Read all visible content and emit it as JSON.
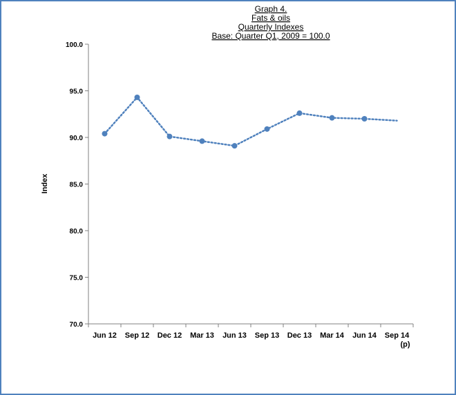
{
  "chart_data": {
    "type": "line",
    "title": [
      "Graph 4.",
      "Fats & oils",
      "Quarterly  Indexes",
      "Base: Quarter Q1, 2009 = 100.0"
    ],
    "xlabel": "",
    "ylabel": "Index",
    "categories": [
      "Jun 12",
      "Sep 12",
      "Dec 12",
      "Mar 13",
      "Jun 13",
      "Sep 13",
      "Dec 13",
      "Mar 14",
      "Jun 14",
      "Sep 14\n(p)"
    ],
    "series": [
      {
        "values": [
          90.4,
          94.3,
          90.1,
          89.6,
          89.1,
          90.9,
          92.6,
          92.1,
          92.0,
          91.8
        ]
      }
    ],
    "ylim": [
      70.0,
      100.0
    ],
    "yticks": [
      "70.0",
      "75.0",
      "80.0",
      "85.0",
      "90.0",
      "95.0",
      "100.0"
    ],
    "grid": false,
    "legend": "none",
    "line_color": "#4f81bd",
    "marker_color": "#4f81bd",
    "border_color": "#4f81bd"
  }
}
